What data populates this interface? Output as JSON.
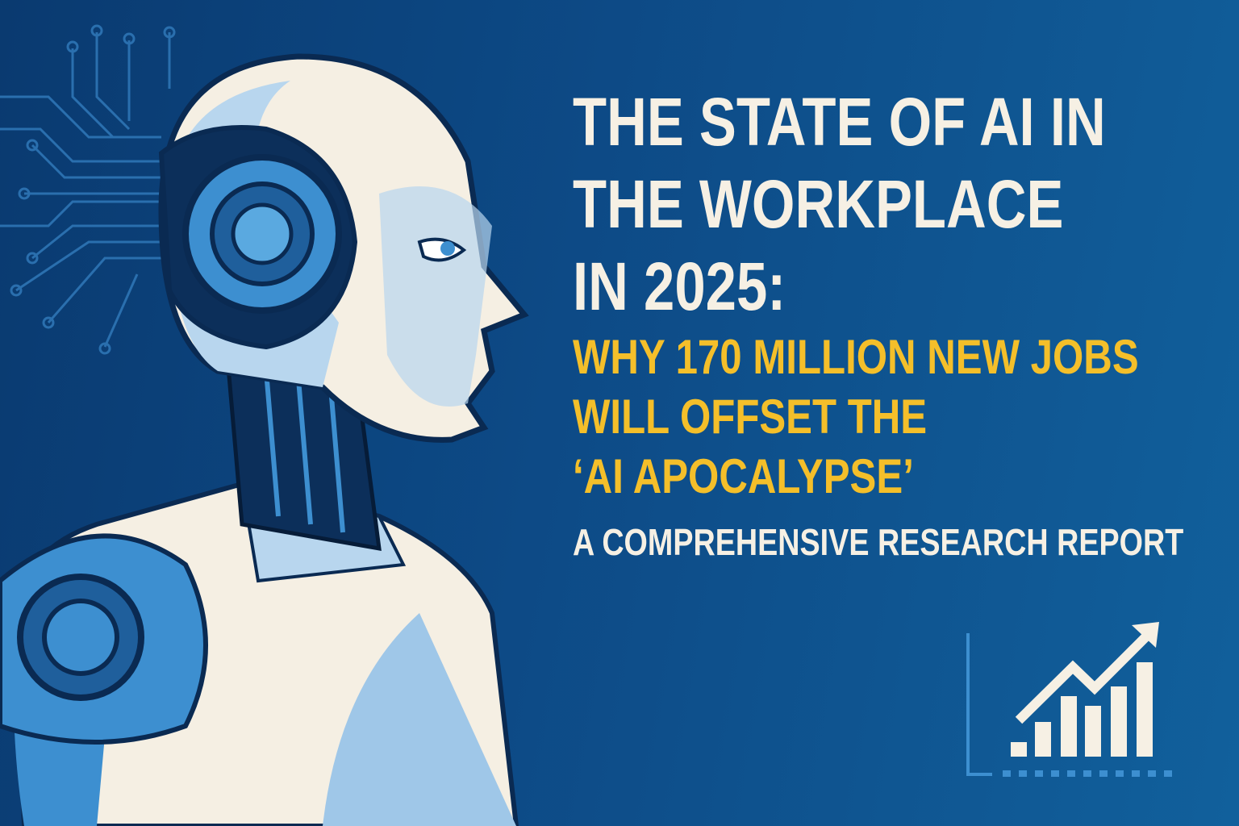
{
  "title": {
    "lines": [
      "THE STATE OF AI IN",
      "THE WORKPLACE",
      "IN 2025:"
    ]
  },
  "subtitle_highlight": {
    "lines": [
      "WHY 170 MILLION NEW JOBS",
      "WILL OFFSET THE",
      "‘AI APOCALYPSE’"
    ]
  },
  "tagline": "A COMPREHENSIVE RESEARCH REPORT",
  "icons": [
    "robot-illustration",
    "circuit-pattern",
    "growth-chart-icon"
  ],
  "colors": {
    "background": "#0d4a86",
    "title": "#f6f0e4",
    "highlight": "#f4bf2a",
    "robot_cream": "#f5efe3",
    "robot_blue": "#3d8fd0"
  }
}
